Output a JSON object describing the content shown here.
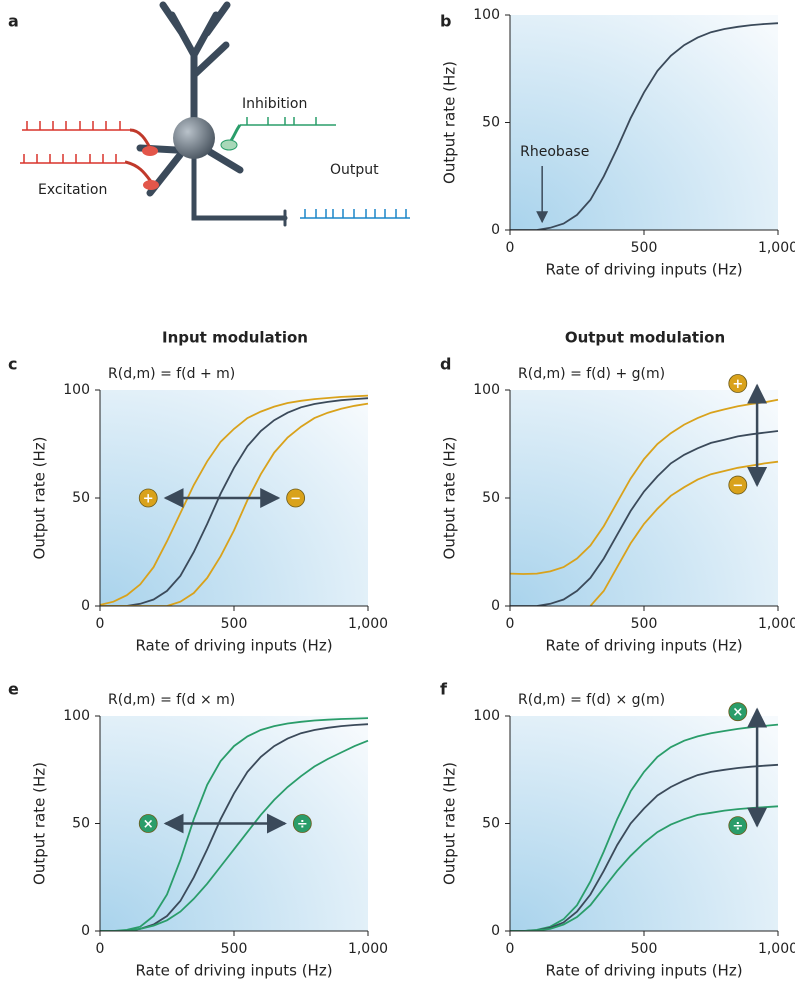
{
  "diagram": {
    "label": "a",
    "labels": {
      "excitation": "Excitation",
      "inhibition": "Inhibition",
      "output": "Output"
    }
  },
  "column_headers": [
    "Input modulation",
    "Output modulation"
  ],
  "chart_data": [
    {
      "type": "line",
      "label": "b",
      "xlabel": "Rate of driving inputs (Hz)",
      "ylabel": "Output rate (Hz)",
      "xlim": [
        0,
        1000
      ],
      "ylim": [
        0,
        100
      ],
      "xticks": [
        0,
        500,
        {
          "value": 1000,
          "label": "1,000"
        }
      ],
      "yticks": [
        0,
        50,
        100
      ],
      "x": [
        0,
        50,
        100,
        150,
        200,
        250,
        300,
        350,
        400,
        450,
        500,
        550,
        600,
        650,
        700,
        750,
        800,
        850,
        900,
        950,
        1000
      ],
      "series": [
        {
          "color": "#3b4a5a",
          "values": [
            0,
            0,
            0,
            1,
            3,
            7,
            14,
            25,
            38,
            52,
            64,
            74,
            81,
            86,
            89.5,
            92,
            93.5,
            94.5,
            95.3,
            95.8,
            96.2
          ]
        }
      ],
      "annotation": {
        "text": "Rheobase",
        "x": 120
      }
    },
    {
      "type": "line",
      "label": "c",
      "formula": "R(d,m) = f(d + m)",
      "xlabel": "Rate of driving inputs (Hz)",
      "ylabel": "Output rate (Hz)",
      "xlim": [
        0,
        1000
      ],
      "ylim": [
        0,
        100
      ],
      "xticks": [
        0,
        500,
        {
          "value": 1000,
          "label": "1,000"
        }
      ],
      "yticks": [
        0,
        50,
        100
      ],
      "x": [
        0,
        50,
        100,
        150,
        200,
        250,
        300,
        350,
        400,
        450,
        500,
        550,
        600,
        650,
        700,
        750,
        800,
        850,
        900,
        950,
        1000
      ],
      "markers": [
        "+",
        "−"
      ],
      "series": [
        {
          "color": "#d9a21b",
          "values": [
            0.5,
            2,
            5,
            10,
            18,
            30,
            43,
            56,
            67,
            76,
            82,
            87,
            90,
            92.3,
            94,
            95,
            95.8,
            96.3,
            96.8,
            97.1,
            97.4
          ]
        },
        {
          "color": "#3b4a5a",
          "values": [
            0,
            0,
            0,
            1,
            3,
            7,
            14,
            25,
            38,
            52,
            64,
            74,
            81,
            86,
            89.5,
            92,
            93.5,
            94.5,
            95.3,
            95.8,
            96.2
          ]
        },
        {
          "color": "#d9a21b",
          "values": [
            0,
            0,
            0,
            0,
            0,
            0,
            2,
            6,
            13,
            23,
            35,
            49,
            61,
            71,
            78,
            83,
            87,
            89.5,
            91.3,
            92.7,
            93.7
          ]
        }
      ]
    },
    {
      "type": "line",
      "label": "d",
      "formula": "R(d,m) = f(d) + g(m)",
      "xlabel": "Rate of driving inputs (Hz)",
      "ylabel": "Output rate (Hz)",
      "xlim": [
        0,
        1000
      ],
      "ylim": [
        0,
        100
      ],
      "xticks": [
        0,
        500,
        {
          "value": 1000,
          "label": "1,000"
        }
      ],
      "yticks": [
        0,
        50,
        100
      ],
      "x": [
        0,
        50,
        100,
        150,
        200,
        250,
        300,
        350,
        400,
        450,
        500,
        550,
        600,
        650,
        700,
        750,
        800,
        850,
        900,
        950,
        1000
      ],
      "markers": [
        "+",
        "−"
      ],
      "series": [
        {
          "color": "#d9a21b",
          "values": [
            15,
            14.8,
            15,
            16,
            18,
            22,
            28,
            37,
            48,
            59,
            68,
            75,
            80,
            84,
            87,
            89.5,
            91,
            92.5,
            93.5,
            94.3,
            95.5
          ]
        },
        {
          "color": "#3b4a5a",
          "values": [
            0,
            0,
            0,
            1,
            3,
            7,
            13,
            22,
            33,
            44,
            53,
            60,
            66,
            70,
            73,
            75.5,
            77,
            78.5,
            79.5,
            80.3,
            81
          ]
        },
        {
          "color": "#d9a21b",
          "values": [
            null,
            null,
            null,
            null,
            null,
            null,
            0,
            7,
            18,
            29,
            38,
            45,
            51,
            55,
            58.5,
            61,
            62.5,
            64,
            65,
            66,
            66.8
          ]
        }
      ]
    },
    {
      "type": "line",
      "label": "e",
      "formula": "R(d,m) = f(d × m)",
      "xlabel": "Rate of driving inputs (Hz)",
      "ylabel": "Output rate (Hz)",
      "xlim": [
        0,
        1000
      ],
      "ylim": [
        0,
        100
      ],
      "xticks": [
        0,
        500,
        {
          "value": 1000,
          "label": "1,000"
        }
      ],
      "yticks": [
        0,
        50,
        100
      ],
      "x": [
        0,
        50,
        100,
        150,
        200,
        250,
        300,
        350,
        400,
        450,
        500,
        550,
        600,
        650,
        700,
        750,
        800,
        850,
        900,
        950,
        1000
      ],
      "markers": [
        "×",
        "÷"
      ],
      "series": [
        {
          "color": "#2a9d6a",
          "values": [
            0,
            0,
            0.5,
            2,
            7,
            17,
            33,
            52,
            68,
            79,
            86,
            90.5,
            93.5,
            95.3,
            96.5,
            97.3,
            97.9,
            98.3,
            98.6,
            98.8,
            99
          ]
        },
        {
          "color": "#3b4a5a",
          "values": [
            0,
            0,
            0,
            1,
            3,
            7,
            14,
            25,
            38,
            52,
            64,
            74,
            81,
            86,
            89.5,
            92,
            93.5,
            94.5,
            95.3,
            95.8,
            96.2
          ]
        },
        {
          "color": "#2a9d6a",
          "values": [
            0,
            0,
            0,
            1,
            2.5,
            5,
            9,
            15,
            22,
            30,
            38,
            46,
            54,
            61,
            67,
            72,
            76.5,
            80,
            83,
            86,
            88.5
          ]
        }
      ]
    },
    {
      "type": "line",
      "label": "f",
      "formula": "R(d,m) = f(d) × g(m)",
      "xlabel": "Rate of driving inputs (Hz)",
      "ylabel": "Output rate (Hz)",
      "xlim": [
        0,
        1000
      ],
      "ylim": [
        0,
        100
      ],
      "xticks": [
        0,
        500,
        {
          "value": 1000,
          "label": "1,000"
        }
      ],
      "yticks": [
        0,
        50,
        100
      ],
      "x": [
        0,
        50,
        100,
        150,
        200,
        250,
        300,
        350,
        400,
        450,
        500,
        550,
        600,
        650,
        700,
        750,
        800,
        850,
        900,
        950,
        1000
      ],
      "markers": [
        "×",
        "÷"
      ],
      "series": [
        {
          "color": "#2a9d6a",
          "values": [
            0,
            0,
            0.5,
            2,
            5.5,
            12,
            23,
            37,
            52,
            65,
            74,
            81,
            85.5,
            88.5,
            90.5,
            92,
            93,
            94,
            94.8,
            95.4,
            96
          ]
        },
        {
          "color": "#3b4a5a",
          "values": [
            0,
            0,
            0.3,
            1.5,
            4,
            9,
            17,
            28,
            40,
            50,
            57,
            63,
            67,
            70,
            72.5,
            74,
            75,
            75.8,
            76.4,
            76.9,
            77.3
          ]
        },
        {
          "color": "#2a9d6a",
          "values": [
            0,
            0,
            0.3,
            1,
            3,
            6.5,
            12,
            20,
            28,
            35,
            41,
            46,
            49.5,
            52,
            54,
            55,
            56,
            56.7,
            57.2,
            57.6,
            58
          ]
        }
      ]
    }
  ]
}
